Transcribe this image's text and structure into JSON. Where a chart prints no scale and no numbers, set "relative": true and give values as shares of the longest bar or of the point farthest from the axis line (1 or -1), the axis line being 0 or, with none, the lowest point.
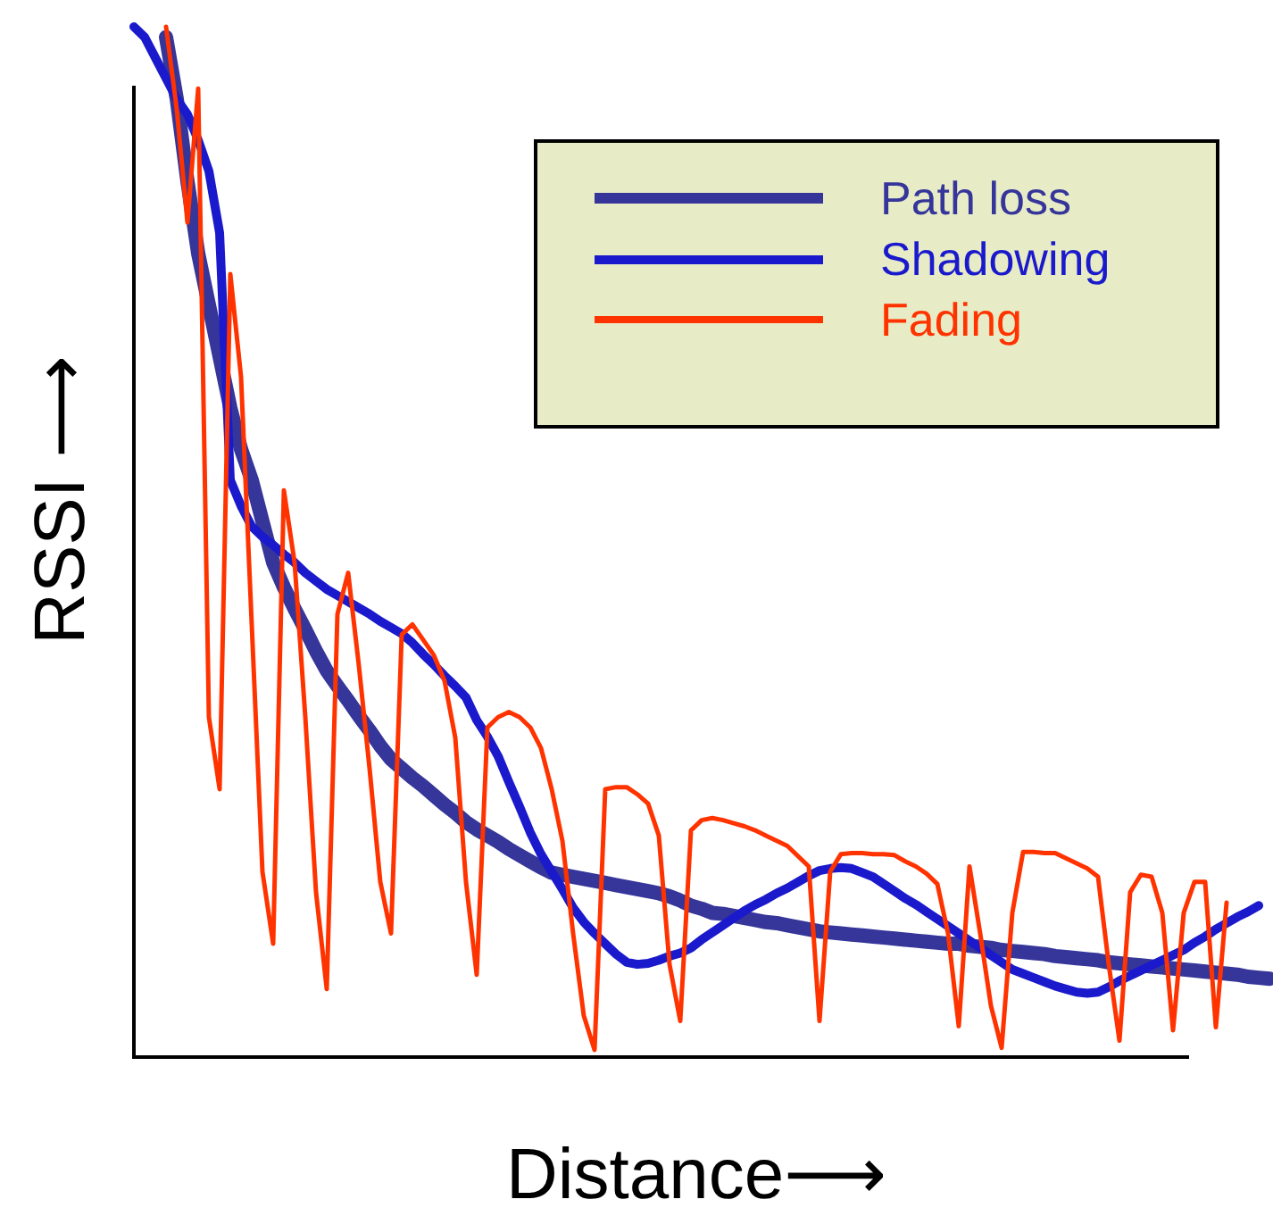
{
  "chart_data": {
    "type": "line",
    "relative": true,
    "xlabel": "Distance⟶",
    "ylabel": "RSSI ⟶",
    "legend": "top right",
    "marker": "none",
    "line_style": "solid",
    "categories": [
      null,
      null,
      null,
      null,
      null,
      null,
      null,
      null,
      null,
      null,
      null,
      null,
      null,
      null,
      null,
      null,
      null,
      null,
      null,
      null,
      null,
      null,
      null,
      null,
      null,
      null,
      null,
      null,
      null,
      null,
      null,
      null,
      null,
      null,
      null,
      null,
      null,
      null,
      null,
      null,
      null,
      null,
      null,
      null,
      null,
      null,
      null,
      null,
      null,
      null,
      null,
      null,
      null,
      null,
      null,
      null,
      null,
      null,
      null,
      null,
      null,
      null,
      null,
      null,
      null,
      null,
      null,
      null,
      null,
      null,
      null,
      null,
      null,
      null,
      null,
      null,
      null,
      null,
      null,
      null,
      null,
      null,
      null,
      null,
      null,
      null,
      null,
      null,
      null,
      null,
      null,
      null,
      null,
      null,
      null,
      null,
      null,
      null,
      null,
      null,
      null,
      null,
      null,
      null,
      null,
      null,
      null
    ],
    "series": [
      {
        "name": "Path loss",
        "color": "#35359a",
        "values": [
          null,
          null,
          null,
          0.99,
          0.93,
          0.85,
          0.78,
          0.73,
          0.68,
          0.63,
          0.59,
          0.56,
          0.52,
          0.48,
          0.456,
          0.435,
          0.415,
          0.394,
          0.375,
          0.36,
          0.346,
          0.331,
          0.317,
          0.302,
          0.289,
          0.28,
          0.271,
          0.263,
          0.254,
          0.245,
          0.237,
          0.228,
          0.221,
          0.215,
          0.209,
          0.202,
          0.196,
          0.19,
          0.184,
          0.179,
          0.177,
          0.175,
          0.173,
          0.171,
          0.169,
          0.167,
          0.165,
          0.163,
          0.161,
          0.159,
          0.156,
          0.152,
          0.147,
          0.144,
          0.14,
          0.139,
          0.137,
          0.135,
          0.133,
          0.131,
          0.13,
          0.128,
          0.126,
          0.124,
          0.122,
          0.121,
          0.12,
          0.119,
          0.118,
          0.117,
          0.116,
          0.115,
          0.114,
          0.113,
          0.112,
          0.111,
          0.11,
          0.11,
          0.108,
          0.107,
          0.106,
          0.104,
          0.103,
          0.102,
          0.101,
          0.1,
          0.098,
          0.097,
          0.096,
          0.095,
          0.094,
          0.092,
          0.091,
          0.09,
          0.089,
          0.088,
          0.087,
          0.086,
          0.085,
          0.084,
          0.083,
          0.082,
          0.081,
          0.08,
          0.078,
          0.077,
          0.076
        ]
      },
      {
        "name": "Shadowing",
        "color": "#1a1acc",
        "values": [
          1.0,
          0.99,
          0.97,
          0.95,
          0.93,
          0.915,
          0.89,
          0.86,
          0.8,
          0.56,
          0.535,
          0.515,
          0.505,
          0.497,
          0.488,
          0.48,
          0.47,
          0.462,
          0.454,
          0.448,
          0.442,
          0.436,
          0.43,
          0.423,
          0.417,
          0.411,
          0.402,
          0.391,
          0.381,
          0.37,
          0.36,
          0.349,
          0.327,
          0.311,
          0.292,
          0.267,
          0.243,
          0.218,
          0.197,
          0.18,
          0.163,
          0.145,
          0.131,
          0.12,
          0.11,
          0.1,
          0.092,
          0.09,
          0.091,
          0.094,
          0.098,
          0.101,
          0.106,
          0.114,
          0.121,
          0.128,
          0.135,
          0.142,
          0.148,
          0.153,
          0.159,
          0.164,
          0.17,
          0.176,
          0.181,
          0.183,
          0.184,
          0.183,
          0.179,
          0.175,
          0.168,
          0.161,
          0.154,
          0.148,
          0.141,
          0.134,
          0.127,
          0.12,
          0.113,
          0.106,
          0.099,
          0.092,
          0.085,
          0.081,
          0.077,
          0.073,
          0.069,
          0.066,
          0.063,
          0.062,
          0.063,
          0.068,
          0.074,
          0.079,
          0.084,
          0.089,
          0.094,
          0.099,
          0.104,
          0.111,
          0.117,
          0.124,
          0.13,
          0.136,
          0.141,
          0.147,
          null
        ]
      },
      {
        "name": "Fading",
        "color": "#ff3300",
        "values": [
          null,
          null,
          null,
          1.0,
          0.92,
          0.81,
          0.94,
          0.33,
          0.26,
          0.76,
          0.66,
          0.42,
          0.18,
          0.11,
          0.55,
          0.48,
          0.33,
          0.16,
          0.066,
          0.43,
          0.47,
          0.38,
          0.28,
          0.17,
          0.12,
          0.41,
          0.42,
          0.405,
          0.39,
          0.365,
          0.31,
          0.17,
          0.08,
          0.32,
          0.33,
          0.335,
          0.33,
          0.32,
          0.3,
          0.26,
          0.21,
          0.12,
          0.04,
          0.007,
          0.26,
          0.262,
          0.262,
          0.255,
          0.246,
          0.215,
          0.09,
          0.035,
          0.22,
          0.23,
          0.232,
          0.23,
          0.227,
          0.224,
          0.22,
          0.215,
          0.21,
          0.205,
          0.195,
          0.185,
          0.035,
          0.18,
          0.197,
          0.198,
          0.198,
          0.197,
          0.197,
          0.196,
          0.19,
          0.185,
          0.178,
          0.168,
          0.12,
          0.03,
          0.185,
          0.12,
          0.05,
          0.009,
          0.14,
          0.199,
          0.199,
          0.198,
          0.198,
          0.193,
          0.188,
          0.183,
          0.175,
          0.09,
          0.016,
          0.16,
          0.177,
          0.175,
          0.14,
          0.026,
          0.14,
          0.17,
          0.17,
          0.029,
          0.15,
          null,
          null,
          null,
          null
        ]
      }
    ]
  }
}
